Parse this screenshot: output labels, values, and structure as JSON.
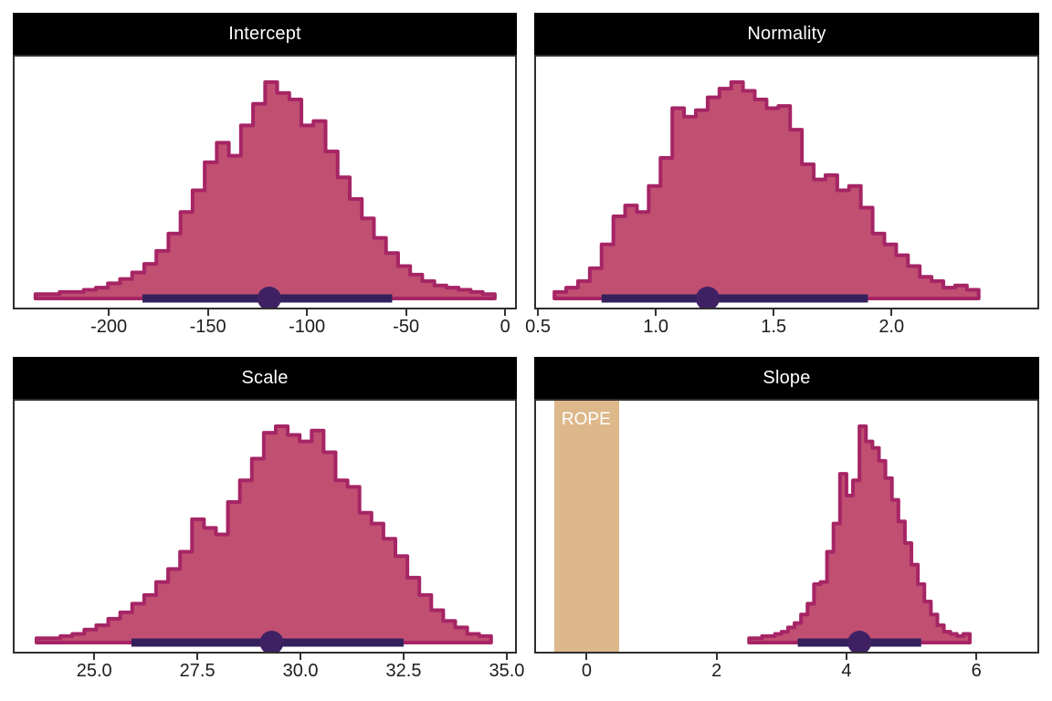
{
  "figure": {
    "description": "Posterior distributions with credible intervals",
    "panel_titles": [
      "Intercept",
      "Normality",
      "Scale",
      "Slope"
    ]
  },
  "colors": {
    "hist_fill": "#c04f72",
    "hist_stroke": "#a62565",
    "ci_bar": "#34205d",
    "ci_point": "#3f2163",
    "rope_fill": "#dcb88a",
    "rope_text": "#ffffff",
    "strip_bg": "#000000",
    "strip_text": "#ffffff",
    "axis_text": "#1c1c1c",
    "tick_mark": "#333333",
    "panel_border": "#2e2e2e"
  },
  "chart_data": [
    {
      "title": "Intercept",
      "type": "bar",
      "subtype": "posterior-histogram",
      "xlim": [
        -247.5,
        5
      ],
      "bin_start": -237,
      "bin_width": 6.1,
      "heights": [
        0.02,
        0.02,
        0.03,
        0.03,
        0.04,
        0.05,
        0.07,
        0.09,
        0.12,
        0.16,
        0.22,
        0.3,
        0.4,
        0.5,
        0.63,
        0.72,
        0.66,
        0.8,
        0.9,
        1.0,
        0.95,
        0.92,
        0.8,
        0.82,
        0.68,
        0.56,
        0.46,
        0.37,
        0.28,
        0.21,
        0.15,
        0.11,
        0.08,
        0.06,
        0.05,
        0.04,
        0.03,
        0.02
      ],
      "ci": {
        "low": -183,
        "median": -119,
        "high": -57
      },
      "ticks": [
        {
          "value": -200,
          "label": "-200"
        },
        {
          "value": -150,
          "label": "-150"
        },
        {
          "value": -100,
          "label": "-100"
        },
        {
          "value": -50,
          "label": "-50"
        },
        {
          "value": 0,
          "label": "0"
        }
      ],
      "rope": null
    },
    {
      "title": "Normality",
      "type": "bar",
      "subtype": "posterior-histogram",
      "xlim": [
        0.492,
        2.619
      ],
      "bin_start": 0.57,
      "bin_width": 0.05,
      "heights": [
        0.03,
        0.05,
        0.08,
        0.14,
        0.25,
        0.38,
        0.43,
        0.4,
        0.52,
        0.65,
        0.88,
        0.84,
        0.87,
        0.93,
        0.97,
        1.0,
        0.96,
        0.92,
        0.88,
        0.89,
        0.78,
        0.62,
        0.55,
        0.57,
        0.5,
        0.52,
        0.42,
        0.3,
        0.25,
        0.2,
        0.15,
        0.1,
        0.08,
        0.05,
        0.06,
        0.04
      ],
      "ci": {
        "low": 0.77,
        "median": 1.22,
        "high": 1.9
      },
      "ticks": [
        {
          "value": 0.5,
          "label": "0.5"
        },
        {
          "value": 1.0,
          "label": "1.0"
        },
        {
          "value": 1.5,
          "label": "1.5"
        },
        {
          "value": 2.0,
          "label": "2.0"
        }
      ],
      "rope": null
    },
    {
      "title": "Scale",
      "type": "bar",
      "subtype": "posterior-histogram",
      "xlim": [
        23.07,
        35.2
      ],
      "bin_start": 23.6,
      "bin_width": 0.29,
      "heights": [
        0.02,
        0.02,
        0.03,
        0.04,
        0.06,
        0.08,
        0.11,
        0.14,
        0.18,
        0.22,
        0.28,
        0.34,
        0.42,
        0.57,
        0.53,
        0.5,
        0.65,
        0.75,
        0.85,
        0.97,
        1.0,
        0.96,
        0.93,
        0.98,
        0.88,
        0.75,
        0.72,
        0.6,
        0.55,
        0.48,
        0.4,
        0.3,
        0.22,
        0.15,
        0.1,
        0.07,
        0.04,
        0.03
      ],
      "ci": {
        "low": 25.9,
        "median": 29.3,
        "high": 32.5
      },
      "ticks": [
        {
          "value": 25.0,
          "label": "25.0"
        },
        {
          "value": 27.5,
          "label": "27.5"
        },
        {
          "value": 30.0,
          "label": "30.0"
        },
        {
          "value": 32.5,
          "label": "32.5"
        },
        {
          "value": 35.0,
          "label": "35.0"
        }
      ],
      "rope": null
    },
    {
      "title": "Slope",
      "type": "bar",
      "subtype": "posterior-histogram",
      "xlim": [
        -0.78,
        6.94
      ],
      "bin_start": 2.5,
      "bin_width": 0.1,
      "heights": [
        0.02,
        0.02,
        0.03,
        0.03,
        0.04,
        0.05,
        0.07,
        0.09,
        0.13,
        0.18,
        0.27,
        0.28,
        0.42,
        0.55,
        0.78,
        0.68,
        0.75,
        1.0,
        0.93,
        0.9,
        0.84,
        0.76,
        0.66,
        0.56,
        0.46,
        0.36,
        0.27,
        0.19,
        0.13,
        0.08,
        0.05,
        0.04,
        0.03,
        0.04
      ],
      "ci": {
        "low": 3.25,
        "median": 4.2,
        "high": 5.15
      },
      "ticks": [
        {
          "value": 0,
          "label": "0"
        },
        {
          "value": 2,
          "label": "2"
        },
        {
          "value": 4,
          "label": "4"
        },
        {
          "value": 6,
          "label": "6"
        }
      ],
      "rope": {
        "low": -0.5,
        "high": 0.5,
        "label": "ROPE"
      }
    }
  ]
}
